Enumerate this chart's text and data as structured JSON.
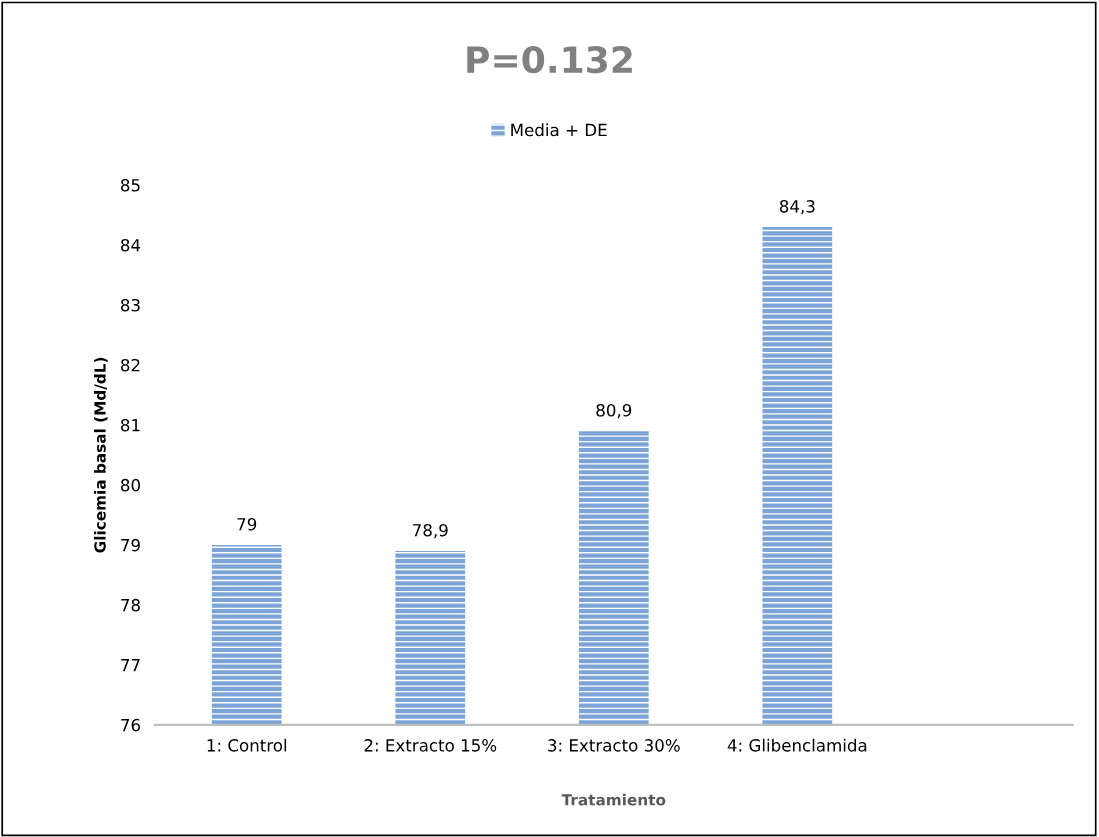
{
  "chart_data": {
    "type": "bar",
    "title": "P=0.132",
    "xlabel": "Tratamiento",
    "ylabel": "Glicemia basal (Md/dL)",
    "categories": [
      "1: Control",
      "2: Extracto 15%",
      "3: Extracto 30%",
      "4: Glibenclamida",
      null
    ],
    "series": [
      {
        "name": "Media + DE",
        "color": "#7da4d6",
        "values": [
          79,
          78.9,
          80.9,
          84.3,
          null
        ],
        "value_labels": [
          "79",
          "78,9",
          "80,9",
          "84,3",
          null
        ]
      }
    ],
    "ylim": [
      76,
      85
    ],
    "yticks": [
      76,
      77,
      78,
      79,
      80,
      81,
      82,
      83,
      84,
      85
    ],
    "grid": false,
    "legend": "top"
  }
}
